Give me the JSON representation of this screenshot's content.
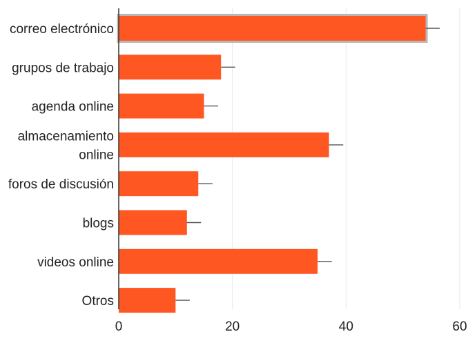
{
  "chart_data": {
    "type": "bar",
    "orientation": "horizontal",
    "categories": [
      "correo electrónico",
      "grupos de trabajo",
      "agenda online",
      "almacenamiento online",
      "foros de discusión",
      "blogs",
      "videos online",
      "Otros"
    ],
    "category_label_lines": [
      [
        "correo electrónico"
      ],
      [
        "grupos de trabajo"
      ],
      [
        "agenda online"
      ],
      [
        "almacenamiento",
        "online"
      ],
      [
        "foros de discusión"
      ],
      [
        "blogs"
      ],
      [
        "videos online"
      ],
      [
        "Otros"
      ]
    ],
    "values": [
      54,
      18,
      15,
      37,
      14,
      12,
      35,
      10
    ],
    "error_upper": [
      56.5,
      20.5,
      17.5,
      39.5,
      16.5,
      14.5,
      37.5,
      12.5
    ],
    "highlighted_category": "correo electrónico",
    "xlim": [
      0,
      60
    ],
    "x_ticks": [
      0,
      20,
      40,
      60
    ],
    "x_tick_labels": [
      "0",
      "20",
      "40",
      "60"
    ],
    "grid": true,
    "bar_color": "#ff5722",
    "title": "",
    "xlabel": "",
    "ylabel": ""
  }
}
